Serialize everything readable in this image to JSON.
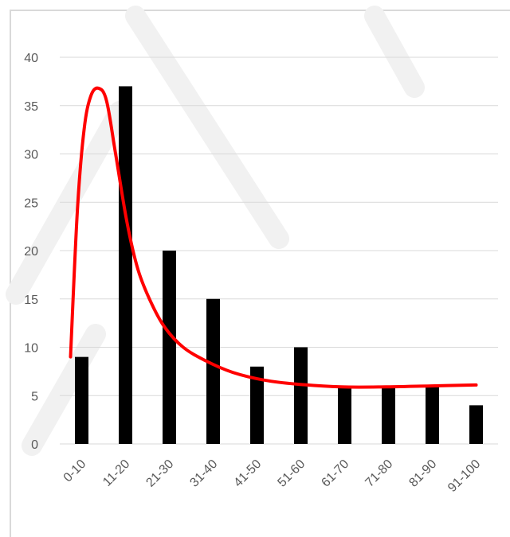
{
  "chart_data": {
    "type": "bar",
    "categories": [
      "0-10",
      "11-20",
      "21-30",
      "31-40",
      "41-50",
      "51-60",
      "61-70",
      "71-80",
      "81-90",
      "91-100"
    ],
    "values": [
      9,
      37,
      20,
      15,
      8,
      10,
      6,
      6,
      6,
      4
    ],
    "trend_line": [
      {
        "x": 0.0,
        "y": 9
      },
      {
        "x": 0.15,
        "y": 24
      },
      {
        "x": 0.3,
        "y": 32.5
      },
      {
        "x": 0.45,
        "y": 36
      },
      {
        "x": 0.62,
        "y": 36.8
      },
      {
        "x": 0.8,
        "y": 35.5
      },
      {
        "x": 1.0,
        "y": 30
      },
      {
        "x": 1.25,
        "y": 23
      },
      {
        "x": 1.5,
        "y": 18
      },
      {
        "x": 1.8,
        "y": 14.5
      },
      {
        "x": 2.1,
        "y": 12
      },
      {
        "x": 2.5,
        "y": 10
      },
      {
        "x": 3.0,
        "y": 8.6
      },
      {
        "x": 3.6,
        "y": 7.4
      },
      {
        "x": 4.3,
        "y": 6.6
      },
      {
        "x": 5.0,
        "y": 6.2
      },
      {
        "x": 6.0,
        "y": 5.9
      },
      {
        "x": 7.0,
        "y": 5.9
      },
      {
        "x": 8.0,
        "y": 6.0
      },
      {
        "x": 9.0,
        "y": 6.1
      }
    ],
    "title": "",
    "xlabel": "",
    "ylabel": "",
    "ylim": [
      0,
      40
    ],
    "yticks": [
      0,
      5,
      10,
      15,
      20,
      25,
      30,
      35,
      40
    ],
    "grid": true,
    "colors": {
      "bars": "#000000",
      "trend": "#ff0000",
      "grid": "#d9d9d9"
    }
  }
}
